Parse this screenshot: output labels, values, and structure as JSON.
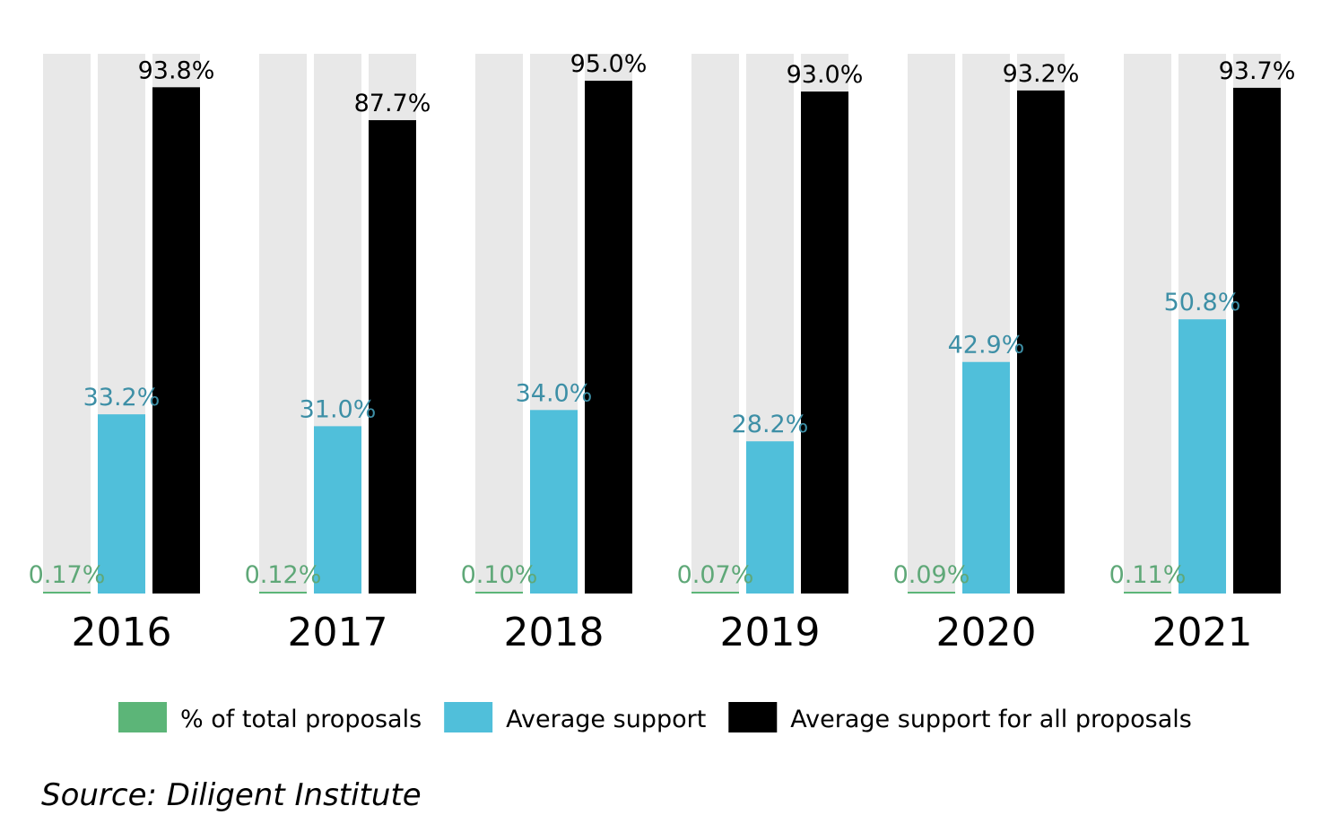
{
  "chart_data": {
    "type": "bar",
    "categories": [
      "2016",
      "2017",
      "2018",
      "2019",
      "2020",
      "2021"
    ],
    "ylim": [
      0,
      100
    ],
    "series": [
      {
        "name": "% of total proposals",
        "color": "#5cb578",
        "label_color": "#5fa878",
        "values": [
          0.17,
          0.12,
          0.1,
          0.07,
          0.09,
          0.11
        ],
        "labels": [
          "0.17%",
          "0.12%",
          "0.10%",
          "0.07%",
          "0.09%",
          "0.11%"
        ]
      },
      {
        "name": "Average support",
        "color": "#50bfda",
        "label_color": "#3d8fa6",
        "values": [
          33.2,
          31.0,
          34.0,
          28.2,
          42.9,
          50.8
        ],
        "labels": [
          "33.2%",
          "31.0%",
          "34.0%",
          "28.2%",
          "42.9%",
          "50.8%"
        ]
      },
      {
        "name": "Average support for all proposals",
        "color": "#000000",
        "label_color": "#000000",
        "values": [
          93.8,
          87.7,
          95.0,
          93.0,
          93.2,
          93.7
        ],
        "labels": [
          "93.8%",
          "87.7%",
          "95.0%",
          "93.0%",
          "93.2%",
          "93.7%"
        ]
      }
    ],
    "background_bar_color": "#e8e8e8",
    "legend_position": "bottom"
  },
  "source": "Source: Diligent Institute"
}
